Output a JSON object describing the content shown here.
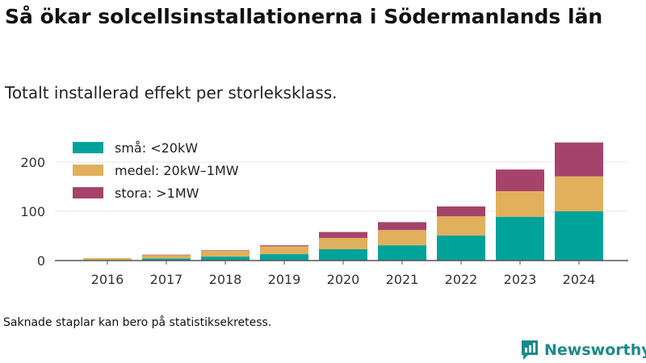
{
  "header": {
    "title": "Så ökar solcellsinstallationerna i Södermanlands län",
    "subtitle": "Totalt installerad effekt per storleksklass."
  },
  "footer": {
    "note": "Saknade staplar kan bero på statistiksekretess.",
    "brand": "Newsworthy",
    "brand_icon": "bar-chart-speech-bubble-icon"
  },
  "colors": {
    "sma": "#00a39a",
    "medel": "#e0b05c",
    "stora": "#a6436a",
    "brand": "#1b8a8a"
  },
  "chart_data": {
    "type": "bar",
    "stacked": true,
    "categories": [
      "2016",
      "2017",
      "2018",
      "2019",
      "2020",
      "2021",
      "2022",
      "2023",
      "2024"
    ],
    "series": [
      {
        "name": "små: <20kW",
        "color": "#00a39a",
        "values": [
          1,
          4,
          8,
          13,
          23,
          31,
          51,
          89,
          100
        ]
      },
      {
        "name": "medel: 20kW–1MW",
        "color": "#e0b05c",
        "values": [
          4,
          7,
          12,
          16,
          23,
          31,
          39,
          52,
          71
        ]
      },
      {
        "name": "stora: >1MW",
        "color": "#a6436a",
        "values": [
          0,
          1,
          1,
          2,
          12,
          16,
          20,
          44,
          69
        ]
      }
    ],
    "yticks": [
      0,
      100,
      200
    ],
    "ylim": [
      0,
      255
    ],
    "grid": true,
    "legend": "top-left"
  }
}
